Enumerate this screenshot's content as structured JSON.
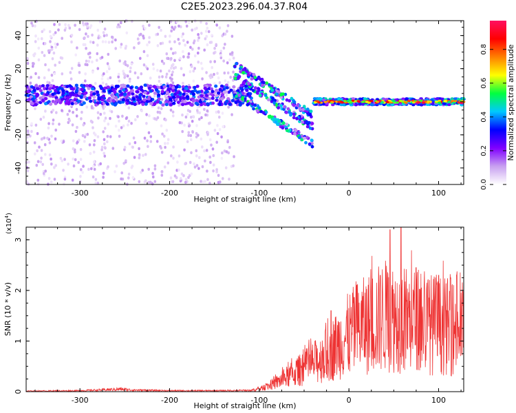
{
  "title": "C2E5.2023.296.04.37.R04",
  "chart_data": [
    {
      "type": "heatmap",
      "xlabel": "Height of straight line (km)",
      "ylabel": "Frequency (Hz)",
      "xlim": [
        -360,
        128
      ],
      "ylim": [
        -50,
        49
      ],
      "x_ticks": [
        -300,
        -200,
        -100,
        0,
        100
      ],
      "y_ticks": [
        -40,
        -20,
        0,
        20,
        40
      ],
      "colorbar": {
        "label": "Normalized spectral amplitude",
        "range": [
          0,
          0.97
        ],
        "ticks": [
          0.0,
          0.2,
          0.4,
          0.6,
          0.8
        ],
        "stops": [
          "#ffffff",
          "#c8a0f0",
          "#8000ff",
          "#0000ff",
          "#00c8ff",
          "#00ff40",
          "#ffff00",
          "#ff8000",
          "#ff0000",
          "#ff1060"
        ]
      },
      "regions": [
        {
          "x_range": [
            -360,
            -128
          ],
          "description_values": {
            "band_center_hz": 4,
            "band_halfwidth_hz": 6,
            "peak_amp": 0.3,
            "noise_spread_hz": 50
          }
        },
        {
          "x_range": [
            -128,
            -40
          ],
          "description_values": {
            "band_center_hz": 0,
            "peak_amp": 0.45,
            "chirp_slope_hz_per_km": -0.35
          }
        },
        {
          "x_range": [
            -40,
            128
          ],
          "description_values": {
            "band_center_hz": 0,
            "band_halfwidth_hz": 2,
            "peak_amp": 0.95
          }
        }
      ]
    },
    {
      "type": "line",
      "xlabel": "Height of straight line (km)",
      "ylabel": "SNR (10 * v/v)",
      "y_multiplier": "(x10",
      "y_multiplier_exp": "4",
      "y_multiplier_close": ")",
      "xlim": [
        -360,
        128
      ],
      "ylim": [
        0,
        3.25
      ],
      "x_ticks": [
        -300,
        -200,
        -100,
        0,
        100
      ],
      "y_ticks": [
        0,
        1,
        2,
        3
      ],
      "line_color": "#ee3333",
      "envelope_x": [
        -360,
        -300,
        -270,
        -255,
        -240,
        -200,
        -150,
        -110,
        -100,
        -90,
        -80,
        -70,
        -60,
        -50,
        -40,
        -30,
        -20,
        -10,
        0,
        10,
        20,
        30,
        40,
        50,
        60,
        70,
        80,
        90,
        100,
        110,
        120,
        128
      ],
      "envelope_y": [
        0.02,
        0.03,
        0.06,
        0.08,
        0.05,
        0.03,
        0.03,
        0.04,
        0.08,
        0.18,
        0.3,
        0.45,
        0.6,
        0.75,
        0.9,
        1.05,
        1.3,
        1.55,
        1.8,
        2.0,
        2.1,
        2.25,
        2.4,
        2.35,
        2.3,
        2.25,
        2.2,
        2.15,
        2.1,
        2.05,
        2.0,
        2.0
      ],
      "peaks": [
        [
          -20,
          1.6
        ],
        [
          35,
          2.3
        ],
        [
          46,
          3.2
        ],
        [
          58,
          3.25
        ],
        [
          75,
          2.45
        ],
        [
          100,
          2.3
        ],
        [
          120,
          2.3
        ]
      ]
    }
  ]
}
